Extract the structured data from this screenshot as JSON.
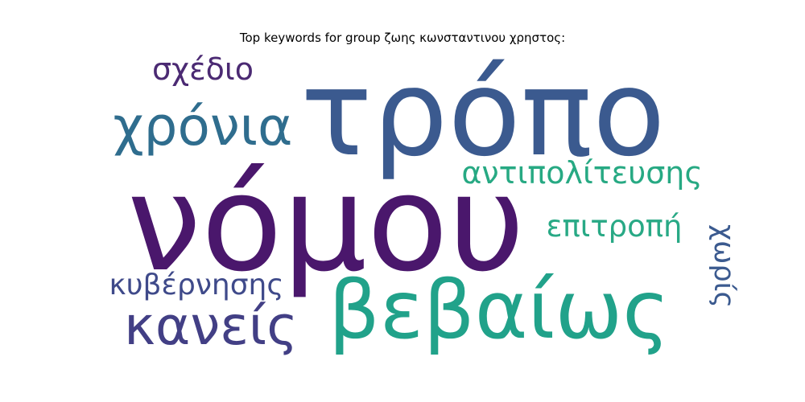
{
  "title": "Top keywords for group ζωης κωνσταντινου χρηστος:",
  "words": [
    {
      "text": "τρόπο",
      "color": "#3b5a8f"
    },
    {
      "text": "νόμου",
      "color": "#4a176c"
    },
    {
      "text": "βεβαίως",
      "color": "#21a28a"
    },
    {
      "text": "χρόνια",
      "color": "#2f6d8e"
    },
    {
      "text": "κανείς",
      "color": "#423f85"
    },
    {
      "text": "σχέδιο",
      "color": "#4b2a73"
    },
    {
      "text": "αντιπολίτευσης",
      "color": "#27a983"
    },
    {
      "text": "επιτροπή",
      "color": "#28a985"
    },
    {
      "text": "κυβέρνησης",
      "color": "#3f4a8a"
    },
    {
      "text": "χωρίς",
      "color": "#3b5a8f"
    }
  ]
}
